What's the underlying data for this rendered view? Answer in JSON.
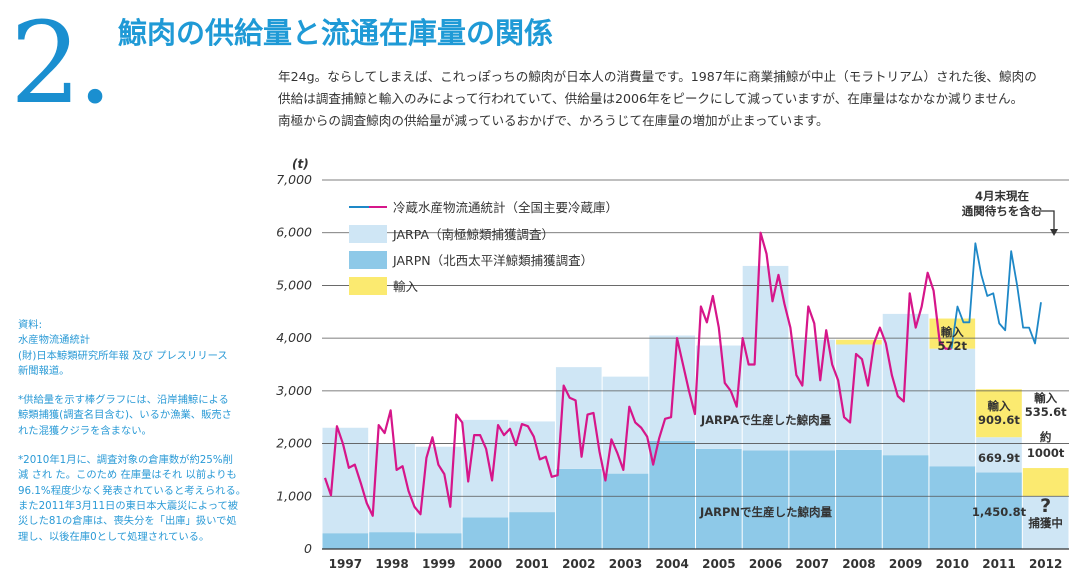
{
  "header": {
    "number": "2.",
    "title": "鯨肉の供給量と流通在庫量の関係"
  },
  "lead": {
    "lines": [
      "年24g。ならしてしまえば、これっぽっちの鯨肉が日本人の消費量です。1987年に商業捕鯨が中止（モラトリアム）された後、鯨肉の",
      "供給は調査捕鯨と輸入のみによって行われていて、供給量は2006年をピークにして減っていますが、在庫量はなかなか減りません。",
      "南極からの調査鯨肉の供給量が減っているおかげで、かろうじて在庫量の増加が止まっています。"
    ]
  },
  "notes": {
    "source_lines": [
      "資料:",
      "水産物流通統計",
      "(財)日本鯨類研究所年報 及び プレスリリース",
      "新聞報道。"
    ],
    "note1_lines": [
      "*供給量を示す棒グラフには、沿岸捕鯨による",
      "鯨類捕獲(調査名目含む)、いるか漁業、販売さ",
      "れた混獲クジラを含まない。"
    ],
    "note2_lines": [
      "*2010年1月に、調査対象の倉庫数が約25%削",
      "減 され た。このため 在庫量はそれ 以前よりも",
      "96.1%程度少なく発表されていると考えられる。",
      "また2011年3月11日の東日本大震災によって被",
      "災した81の倉庫は、喪失分を「出庫」扱いで処",
      "理し、以後在庫0として処理されている。"
    ]
  },
  "chart_data": {
    "type": "bar",
    "unit_label": "(t)",
    "ylim": [
      0,
      7000
    ],
    "yticks": [
      "0",
      "1,000",
      "2,000",
      "3,000",
      "4,000",
      "5,000",
      "6,000",
      "7,000"
    ],
    "categories": [
      "1997",
      "1998",
      "1999",
      "2000",
      "2001",
      "2002",
      "2003",
      "2004",
      "2005",
      "2006",
      "2007",
      "2008",
      "2009",
      "2010",
      "2011",
      "2012"
    ],
    "series": [
      {
        "name": "JARPN（北西太平洋鯨類捕獲調査）",
        "color": "#8ec9e8",
        "values": [
          300,
          320,
          300,
          600,
          700,
          1520,
          1430,
          2050,
          1900,
          1870,
          1870,
          1880,
          1780,
          1570,
          1450.8,
          0
        ]
      },
      {
        "name": "JARPA（南極鯨類捕獲調査）",
        "color": "#cfe6f5",
        "values": [
          2000,
          1680,
          1640,
          1850,
          1720,
          1930,
          1840,
          2000,
          1960,
          3500,
          2100,
          2000,
          2680,
          2230,
          669.9,
          1000
        ]
      },
      {
        "name": "輸入",
        "color": "#fbea70",
        "values": [
          0,
          0,
          0,
          0,
          0,
          0,
          0,
          0,
          0,
          0,
          0,
          90,
          0,
          572,
          909.6,
          535.6
        ]
      }
    ],
    "line_series": {
      "name": "冷蔵水産物流通統計（全国主要冷蔵庫）",
      "color_before": "#d6168a",
      "color_after": "#1e88c7",
      "values": [
        1350,
        1020,
        2330,
        2000,
        1540,
        1600,
        1250,
        870,
        630,
        2350,
        2200,
        2630,
        1500,
        1570,
        1100,
        800,
        660,
        1730,
        2120,
        1600,
        1420,
        800,
        2550,
        2400,
        1280,
        2160,
        2160,
        1900,
        1300,
        2350,
        2160,
        2280,
        1970,
        2370,
        2330,
        2130,
        1700,
        1750,
        1370,
        1400,
        3100,
        2870,
        2820,
        1750,
        2550,
        2580,
        1850,
        1300,
        2080,
        1820,
        1500,
        2700,
        2400,
        2300,
        2130,
        1600,
        2100,
        2470,
        2500,
        4000,
        3500,
        3000,
        2560,
        4600,
        4300,
        4800,
        4200,
        3150,
        3000,
        2700,
        4000,
        3500,
        3500,
        6000,
        5600,
        4700,
        5200,
        4650,
        4200,
        3300,
        3100,
        4600,
        4280,
        3200,
        4150,
        3500,
        3200,
        2500,
        2400,
        3700,
        3600,
        3100,
        3900,
        4200,
        3900,
        3300,
        2900,
        2800,
        4850,
        4200,
        4600,
        5240,
        4900,
        3950,
        3800,
        3800,
        4600,
        4300,
        4300,
        5800,
        5200,
        4800,
        4850,
        4280,
        4150,
        5650,
        5000,
        4200,
        4200,
        3900,
        4680
      ],
      "switch_index": 105
    },
    "legend": [
      "冷蔵水産物流通統計（全国主要冷蔵庫）",
      "JARPA（南極鯨類捕獲調査）",
      "JARPN（北西太平洋鯨類捕獲調査）",
      "輸入"
    ],
    "annotations": {
      "jarpa_label": "JARPAで生産した鯨肉量",
      "jarpn_label": "JARPNで生産した鯨肉量",
      "note_april": [
        "4月末現在",
        "通関待ちを含む"
      ],
      "import_2010": [
        "輸入",
        "572t"
      ],
      "import_2011": [
        "輸入",
        "909.6t"
      ],
      "import_2012": [
        "輸入",
        "535.6t"
      ],
      "jarpa_2011": "669.9t",
      "jarpn_2011": "1,450.8t",
      "approx_2012": [
        "約",
        "1000t"
      ],
      "unknown_2012": [
        "?",
        "捕獲中"
      ]
    }
  }
}
